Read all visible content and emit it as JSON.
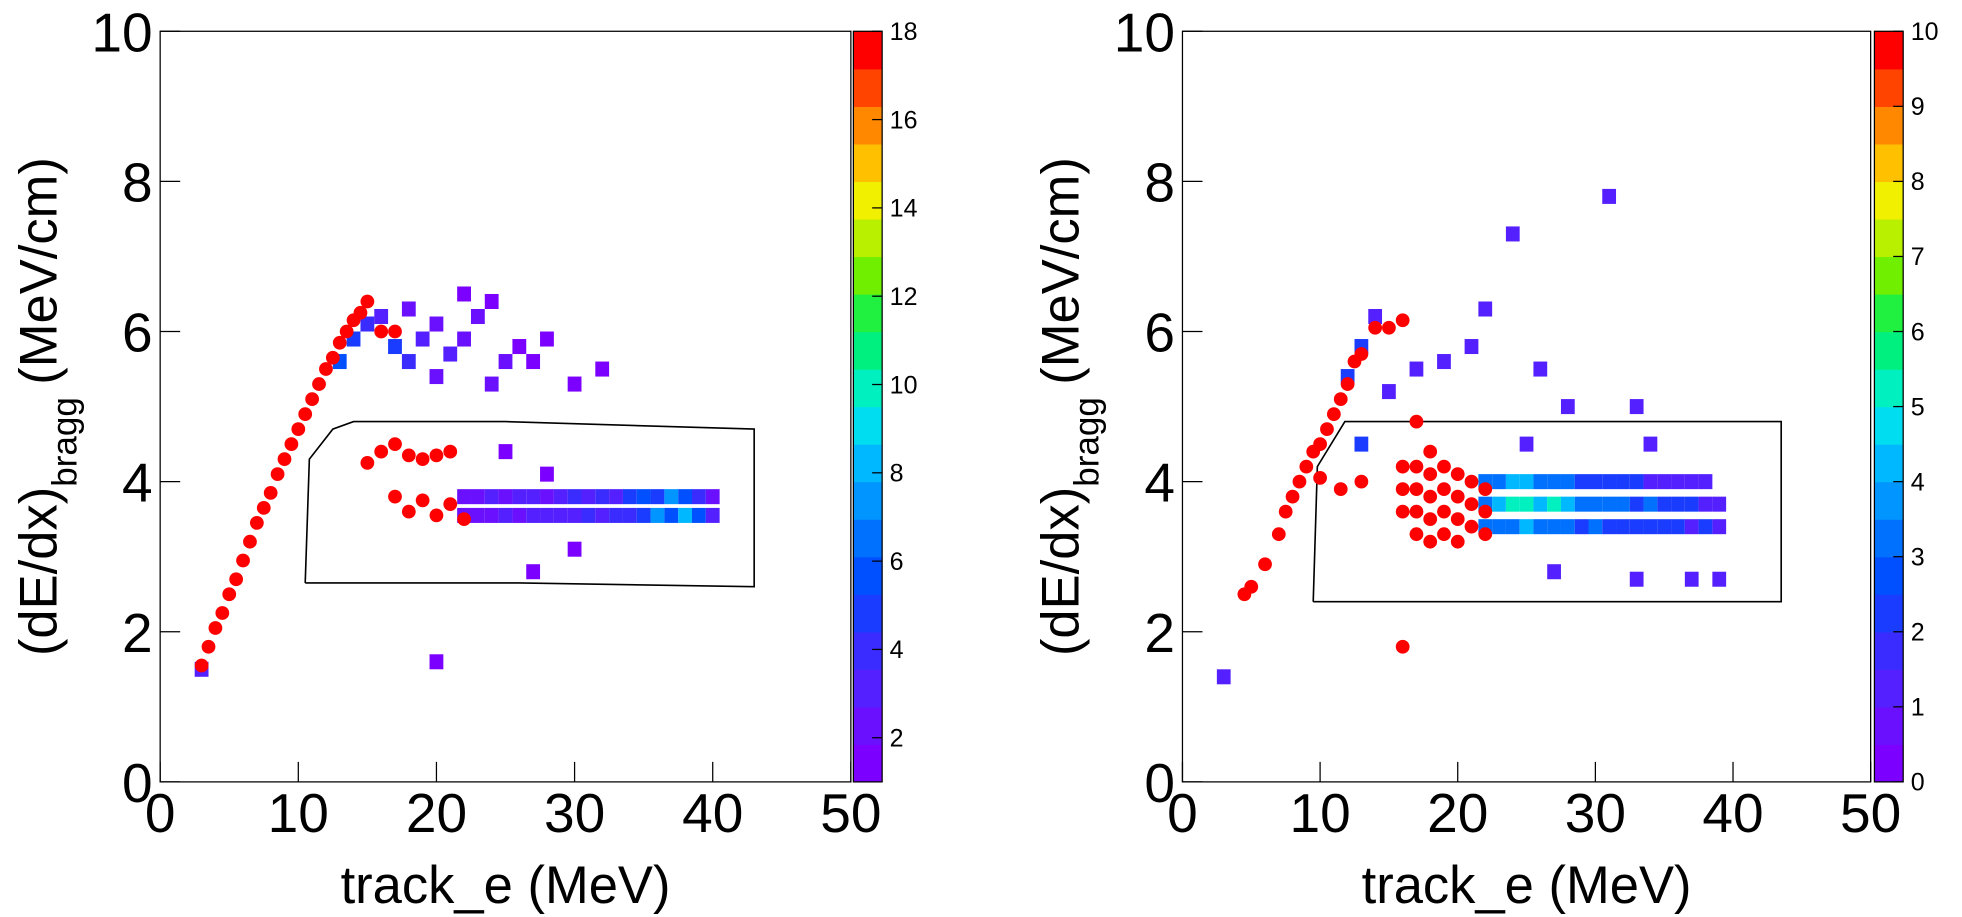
{
  "chart_data": [
    {
      "type": "heatmap",
      "xlabel": "track_e (MeV)",
      "ylabel": "(dE/dx)",
      "ylabel_subscript": "bragg",
      "ylabel_unit": "(MeV/cm)",
      "xlim": [
        0,
        50
      ],
      "xticks": [
        0,
        10,
        20,
        30,
        40,
        50
      ],
      "ylim": [
        0,
        10
      ],
      "yticks": [
        0,
        2,
        4,
        6,
        8,
        10
      ],
      "zlim": [
        1,
        18
      ],
      "zticks": [
        2,
        4,
        6,
        8,
        10,
        12,
        14,
        16,
        18
      ],
      "palette": [
        "#7b00ff",
        "#6a10ff",
        "#5520ff",
        "#3a2cff",
        "#1a3cff",
        "#0050ff",
        "#0070ff",
        "#0095ff",
        "#00b8ff",
        "#00dcf0",
        "#00f0c0",
        "#00f080",
        "#20f040",
        "#70f000",
        "#b8f000",
        "#f0f000",
        "#ffc000",
        "#ff8800",
        "#ff4400",
        "#ff0000"
      ],
      "cells": {
        "x": [
          13,
          14,
          15,
          16,
          17,
          18,
          19,
          20,
          21,
          22,
          23,
          24,
          25,
          26,
          27,
          28,
          30,
          32,
          20,
          24,
          18,
          22,
          22,
          23,
          24,
          25,
          26,
          27,
          28,
          29,
          30,
          31,
          32,
          33,
          34,
          35,
          36,
          37,
          38,
          39,
          40,
          22,
          23,
          24,
          25,
          26,
          27,
          28,
          29,
          30,
          31,
          32,
          33,
          34,
          35,
          36,
          37,
          38,
          39,
          40,
          25,
          28,
          30,
          27,
          20,
          3
        ],
        "y": [
          5.6,
          5.9,
          6.1,
          6.2,
          5.8,
          5.6,
          5.9,
          6.1,
          5.7,
          5.9,
          6.2,
          6.4,
          5.6,
          5.8,
          5.6,
          5.9,
          5.3,
          5.5,
          5.4,
          5.3,
          6.3,
          6.5,
          3.55,
          3.55,
          3.55,
          3.55,
          3.55,
          3.55,
          3.55,
          3.55,
          3.55,
          3.55,
          3.55,
          3.55,
          3.55,
          3.55,
          3.55,
          3.55,
          3.55,
          3.55,
          3.55,
          3.8,
          3.8,
          3.8,
          3.8,
          3.8,
          3.8,
          3.8,
          3.8,
          3.8,
          3.8,
          3.8,
          3.8,
          3.8,
          3.8,
          3.8,
          3.8,
          3.8,
          3.8,
          3.8,
          4.4,
          4.1,
          3.1,
          2.8,
          1.6,
          1.5
        ],
        "z": [
          6,
          5,
          4,
          3,
          5,
          4,
          3,
          2,
          3,
          2,
          2,
          1,
          2,
          1,
          1,
          1,
          1,
          1,
          2,
          2,
          2,
          1,
          2,
          2,
          2,
          3,
          2,
          3,
          3,
          3,
          3,
          4,
          3,
          4,
          4,
          5,
          7,
          6,
          8,
          6,
          3,
          2,
          2,
          3,
          2,
          3,
          3,
          2,
          3,
          4,
          3,
          4,
          3,
          5,
          6,
          5,
          7,
          6,
          4,
          2,
          1,
          1,
          1,
          1,
          1,
          3
        ]
      },
      "marker_color": "#ff0000",
      "markers": {
        "x": [
          3,
          3.5,
          4,
          4.5,
          5,
          5.5,
          6,
          6.5,
          7,
          7.5,
          8,
          8.5,
          9,
          9.5,
          10,
          10.5,
          11,
          11.5,
          12,
          12.5,
          13,
          13.5,
          14,
          14.5,
          15,
          16,
          17,
          15,
          16,
          17,
          18,
          19,
          20,
          21,
          17,
          18,
          19,
          20,
          21,
          22
        ],
        "y": [
          1.55,
          1.8,
          2.05,
          2.25,
          2.5,
          2.7,
          2.95,
          3.2,
          3.45,
          3.65,
          3.85,
          4.1,
          4.3,
          4.5,
          4.7,
          4.9,
          5.1,
          5.3,
          5.5,
          5.65,
          5.85,
          6.0,
          6.15,
          6.25,
          6.4,
          6.0,
          6.0,
          4.25,
          4.4,
          4.5,
          4.35,
          4.3,
          4.35,
          4.4,
          3.8,
          3.6,
          3.75,
          3.55,
          3.7,
          3.5
        ]
      },
      "cut": {
        "x": [
          10.5,
          10.8,
          12.5,
          14,
          25,
          43,
          43,
          26,
          10.5
        ],
        "y": [
          2.65,
          4.3,
          4.7,
          4.8,
          4.8,
          4.7,
          2.6,
          2.65,
          2.65
        ]
      }
    },
    {
      "type": "heatmap",
      "xlabel": "track_e (MeV)",
      "ylabel": "(dE/dx)",
      "ylabel_subscript": "bragg",
      "ylabel_unit": "(MeV/cm)",
      "xlim": [
        0,
        50
      ],
      "xticks": [
        0,
        10,
        20,
        30,
        40,
        50
      ],
      "ylim": [
        0,
        10
      ],
      "yticks": [
        0,
        2,
        4,
        6,
        8,
        10
      ],
      "zlim": [
        0,
        10
      ],
      "zticks": [
        0,
        1,
        2,
        3,
        4,
        5,
        6,
        7,
        8,
        9,
        10
      ],
      "palette": [
        "#7b00ff",
        "#6a10ff",
        "#5520ff",
        "#3a2cff",
        "#1a3cff",
        "#0050ff",
        "#0070ff",
        "#0095ff",
        "#00b8ff",
        "#00dcf0",
        "#00f0c0",
        "#00f080",
        "#20f040",
        "#70f000",
        "#b8f000",
        "#f0f000",
        "#ffc000",
        "#ff8800",
        "#ff4400",
        "#ff0000"
      ],
      "cells": {
        "x": [
          12,
          13,
          14,
          15,
          17,
          19,
          21,
          22,
          24,
          31,
          26,
          28,
          33,
          25,
          34,
          37,
          39,
          33,
          27,
          3,
          13,
          22,
          23,
          24,
          25,
          26,
          27,
          28,
          29,
          30,
          31,
          32,
          33,
          34,
          35,
          36,
          37,
          38,
          39,
          22,
          23,
          24,
          25,
          26,
          27,
          28,
          29,
          30,
          31,
          32,
          33,
          34,
          35,
          36,
          37,
          38,
          39,
          22,
          23,
          24,
          25,
          26,
          27,
          28,
          29,
          30,
          31,
          32,
          33,
          34,
          35,
          36,
          37,
          38
        ],
        "y": [
          5.4,
          5.8,
          6.2,
          5.2,
          5.5,
          5.6,
          5.8,
          6.3,
          7.3,
          7.8,
          5.5,
          5.0,
          5.0,
          4.5,
          4.5,
          2.7,
          2.7,
          2.7,
          2.8,
          1.4,
          4.5,
          3.4,
          3.4,
          3.4,
          3.4,
          3.4,
          3.4,
          3.4,
          3.4,
          3.4,
          3.4,
          3.4,
          3.4,
          3.4,
          3.4,
          3.4,
          3.4,
          3.4,
          3.4,
          3.7,
          3.7,
          3.7,
          3.7,
          3.7,
          3.7,
          3.7,
          3.7,
          3.7,
          3.7,
          3.7,
          3.7,
          3.7,
          3.7,
          3.7,
          3.7,
          3.7,
          3.7,
          4.0,
          4.0,
          4.0,
          4.0,
          4.0,
          4.0,
          4.0,
          4.0,
          4.0,
          4.0,
          4.0,
          4.0,
          4.0,
          4.0,
          4.0,
          4.0,
          4.0
        ],
        "z": [
          2,
          2,
          1,
          1,
          1,
          1,
          1,
          1,
          1,
          1,
          1,
          1,
          1,
          1,
          1,
          1,
          1,
          1,
          1,
          1,
          2,
          3,
          3,
          3,
          4,
          3,
          3,
          3,
          2,
          3,
          2,
          2,
          2,
          2,
          2,
          2,
          1,
          2,
          1,
          3,
          4,
          5,
          5,
          4,
          5,
          4,
          3,
          3,
          3,
          3,
          2,
          3,
          2,
          2,
          2,
          1,
          1,
          3,
          3,
          4,
          4,
          3,
          3,
          3,
          2,
          2,
          2,
          2,
          2,
          1,
          1,
          1,
          1,
          1
        ]
      },
      "marker_color": "#ff0000",
      "markers": {
        "x": [
          4.5,
          5,
          6,
          7,
          7.5,
          8,
          8.5,
          9,
          9.5,
          10,
          10.5,
          11,
          11.5,
          12,
          12.5,
          13,
          14,
          15,
          16,
          16,
          16,
          16,
          17,
          17,
          17,
          17,
          18,
          18,
          18,
          18,
          18,
          19,
          19,
          19,
          19,
          20,
          20,
          20,
          20,
          21,
          21,
          21,
          22,
          22,
          22,
          16,
          10,
          11.5,
          13,
          17
        ],
        "y": [
          2.5,
          2.6,
          2.9,
          3.3,
          3.6,
          3.8,
          4.0,
          4.2,
          4.4,
          4.5,
          4.7,
          4.9,
          5.1,
          5.3,
          5.6,
          5.7,
          6.05,
          6.05,
          6.15,
          3.6,
          3.9,
          4.2,
          3.3,
          3.6,
          3.9,
          4.2,
          3.2,
          3.5,
          3.8,
          4.1,
          4.4,
          3.3,
          3.6,
          3.9,
          4.2,
          3.2,
          3.5,
          3.8,
          4.1,
          3.4,
          3.7,
          4.0,
          3.3,
          3.6,
          3.9,
          1.8,
          4.05,
          3.9,
          4.0,
          4.8
        ]
      },
      "cut": {
        "x": [
          9.5,
          9.8,
          11.8,
          43.5,
          43.5,
          9.5
        ],
        "y": [
          2.4,
          4.2,
          4.8,
          4.8,
          2.4,
          2.4
        ]
      }
    }
  ]
}
